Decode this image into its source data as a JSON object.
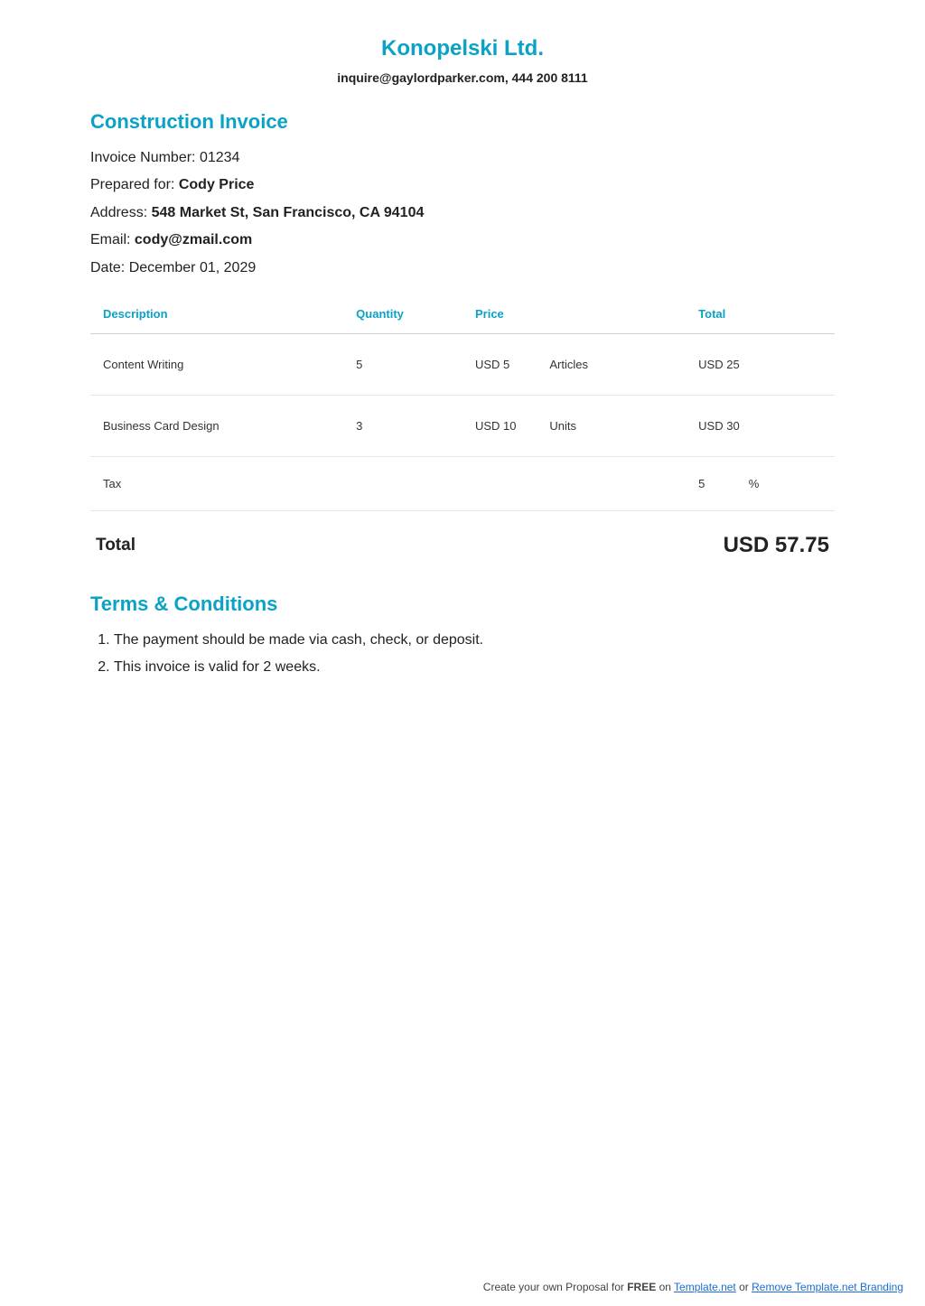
{
  "company": {
    "name": "Konopelski Ltd.",
    "contact": "inquire@gaylordparker.com, 444 200 8111"
  },
  "invoice": {
    "title": "Construction Invoice",
    "labels": {
      "number": "Invoice Number:",
      "prepared_for": "Prepared for:",
      "address": "Address:",
      "email": "Email:",
      "date": "Date:"
    },
    "number": "01234",
    "prepared_for": "Cody Price",
    "address": "548 Market St, San Francisco, CA 94104",
    "email": "cody@zmail.com",
    "date": "December 01, 2029"
  },
  "table": {
    "headers": {
      "description": "Description",
      "quantity": "Quantity",
      "price": "Price",
      "total": "Total"
    },
    "rows": [
      {
        "description": "Content Writing",
        "quantity": "5",
        "price": "USD 5",
        "unit": "Articles",
        "total": "USD 25"
      },
      {
        "description": "Business Card Design",
        "quantity": "3",
        "price": "USD 10",
        "unit": "Units",
        "total": "USD 30"
      }
    ],
    "tax": {
      "label": "Tax",
      "value": "5",
      "symbol": "%"
    }
  },
  "total": {
    "label": "Total",
    "value": "USD 57.75"
  },
  "terms": {
    "title": "Terms & Conditions",
    "items": [
      "The payment should be made via cash, check, or deposit.",
      "This invoice is valid for 2 weeks."
    ]
  },
  "footer": {
    "prefix": "Create your own Proposal for ",
    "free": "FREE",
    "on": " on ",
    "link1": "Template.net",
    "or": " or ",
    "link2": "Remove Template.net Branding"
  }
}
